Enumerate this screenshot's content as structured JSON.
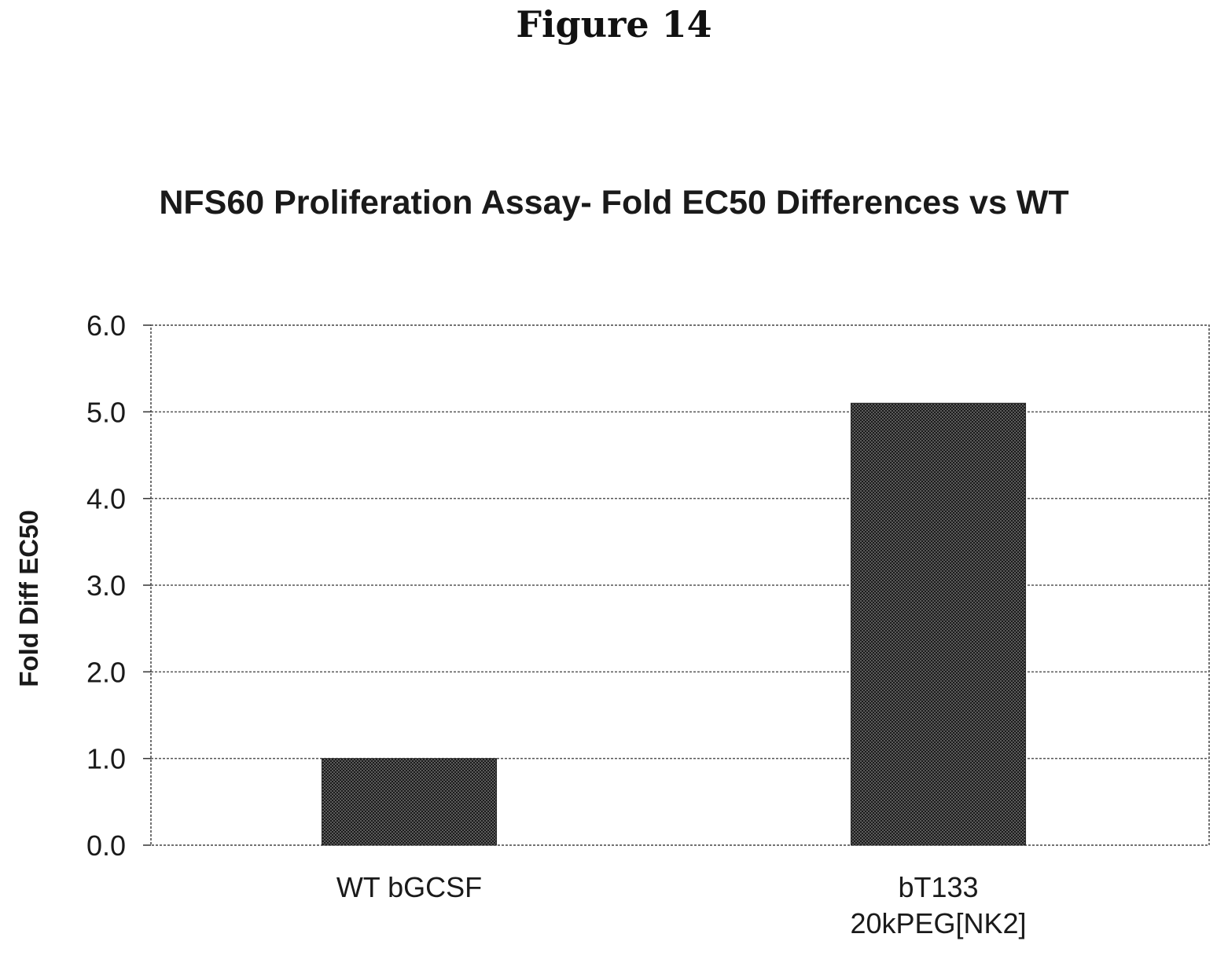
{
  "figure_label": "Figure 14",
  "chart_data": {
    "type": "bar",
    "title": "NFS60 Proliferation Assay- Fold EC50 Differences vs WT",
    "xlabel": "",
    "ylabel": "Fold Diff EC50",
    "categories": [
      [
        "WT bGCSF"
      ],
      [
        "bT133",
        "20kPEG[NK2]"
      ]
    ],
    "values": [
      1.0,
      5.1
    ],
    "ylim": [
      0.0,
      6.0
    ],
    "yticks": [
      "0.0",
      "1.0",
      "2.0",
      "3.0",
      "4.0",
      "5.0",
      "6.0"
    ],
    "grid": true,
    "legend": "none",
    "bar_color": "#3a3a3a"
  }
}
